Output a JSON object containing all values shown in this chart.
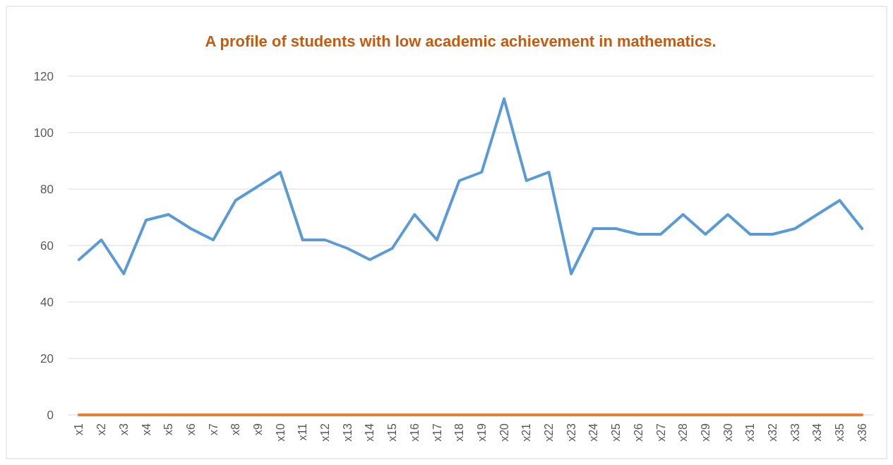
{
  "chart_data": {
    "type": "line",
    "title": "A profile of students with low academic achievement in mathematics.",
    "categories": [
      "x1",
      "x2",
      "x3",
      "x4",
      "x5",
      "x6",
      "x7",
      "x8",
      "x9",
      "x10",
      "x11",
      "x12",
      "x13",
      "x14",
      "x15",
      "x16",
      "x17",
      "x18",
      "x19",
      "x20",
      "x21",
      "x22",
      "x23",
      "x24",
      "x25",
      "x26",
      "x27",
      "x28",
      "x29",
      "x30",
      "x31",
      "x32",
      "x33",
      "x34",
      "x35",
      "x36"
    ],
    "series": [
      {
        "color": "#5b9bd5",
        "values": [
          55,
          62,
          50,
          69,
          71,
          66,
          62,
          76,
          81,
          86,
          62,
          62,
          59,
          55,
          59,
          71,
          62,
          83,
          86,
          112,
          83,
          86,
          50,
          66,
          66,
          64,
          64,
          71,
          64,
          71,
          64,
          64,
          66,
          71,
          76,
          66
        ]
      },
      {
        "color": "#ed7d31",
        "values": [
          0,
          0,
          0,
          0,
          0,
          0,
          0,
          0,
          0,
          0,
          0,
          0,
          0,
          0,
          0,
          0,
          0,
          0,
          0,
          0,
          0,
          0,
          0,
          0,
          0,
          0,
          0,
          0,
          0,
          0,
          0,
          0,
          0,
          0,
          0,
          0
        ]
      }
    ],
    "ylim": [
      0,
      120
    ],
    "yticks": [
      0,
      20,
      40,
      60,
      80,
      100,
      120
    ],
    "grid": "y",
    "marker": "none",
    "line_style": "solid"
  }
}
